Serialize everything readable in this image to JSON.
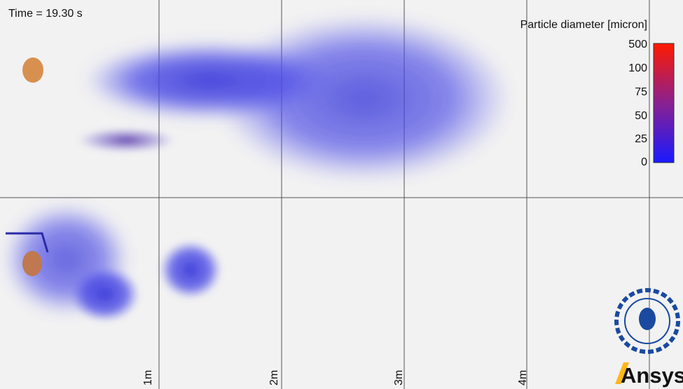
{
  "header": {
    "time_label": "Time = 19.30 s"
  },
  "colorbar": {
    "title": "Particle diameter [micron]",
    "ticks": [
      "500",
      "100",
      "75",
      "50",
      "25",
      "0"
    ]
  },
  "distance_labels": [
    "1m",
    "2m",
    "3m",
    "4m"
  ],
  "logo": {
    "text": "Ansys"
  }
}
